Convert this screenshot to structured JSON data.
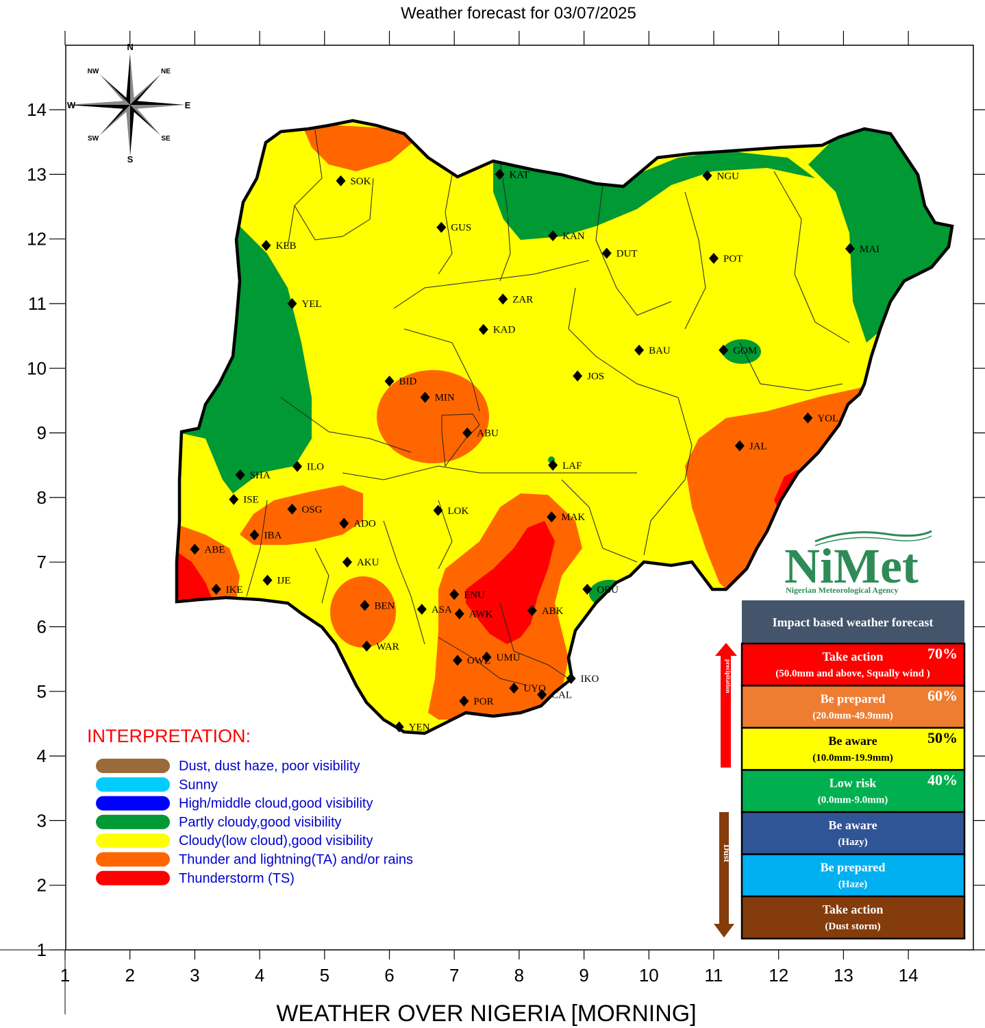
{
  "title": "Weather forecast for 03/07/2025",
  "bottom_caption": "WEATHER OVER NIGERIA [MORNING]",
  "axes": {
    "x_ticks": [
      "1",
      "2",
      "3",
      "4",
      "5",
      "6",
      "7",
      "8",
      "9",
      "10",
      "11",
      "12",
      "13",
      "14"
    ],
    "y_ticks": [
      "14",
      "13",
      "12",
      "11",
      "10",
      "9",
      "8",
      "7",
      "6",
      "5",
      "4",
      "3",
      "2",
      "1"
    ]
  },
  "compass": {
    "n": "N",
    "s": "S",
    "e": "E",
    "w": "W",
    "ne": "NE",
    "nw": "NW",
    "se": "SE",
    "sw": "SW"
  },
  "cities": [
    {
      "code": "SOK",
      "lon": 5.25,
      "lat": 12.9
    },
    {
      "code": "KAT",
      "lon": 7.7,
      "lat": 13.0
    },
    {
      "code": "NGU",
      "lon": 10.9,
      "lat": 12.98
    },
    {
      "code": "GUS",
      "lon": 6.8,
      "lat": 12.18
    },
    {
      "code": "KAN",
      "lon": 8.52,
      "lat": 12.05
    },
    {
      "code": "KEB",
      "lon": 4.1,
      "lat": 11.9
    },
    {
      "code": "DUT",
      "lon": 9.35,
      "lat": 11.78
    },
    {
      "code": "POT",
      "lon": 11.0,
      "lat": 11.7
    },
    {
      "code": "MAI",
      "lon": 13.1,
      "lat": 11.85
    },
    {
      "code": "YEL",
      "lon": 4.5,
      "lat": 11.0
    },
    {
      "code": "ZAR",
      "lon": 7.75,
      "lat": 11.07
    },
    {
      "code": "KAD",
      "lon": 7.45,
      "lat": 10.6
    },
    {
      "code": "BAU",
      "lon": 9.85,
      "lat": 10.28
    },
    {
      "code": "GOM",
      "lon": 11.15,
      "lat": 10.28
    },
    {
      "code": "JOS",
      "lon": 8.9,
      "lat": 9.88
    },
    {
      "code": "BID",
      "lon": 6.0,
      "lat": 9.8
    },
    {
      "code": "MIN",
      "lon": 6.55,
      "lat": 9.55
    },
    {
      "code": "ABU",
      "lon": 7.2,
      "lat": 9.0
    },
    {
      "code": "YOL",
      "lon": 12.45,
      "lat": 9.23
    },
    {
      "code": "JAL",
      "lon": 11.4,
      "lat": 8.8
    },
    {
      "code": "LAF",
      "lon": 8.52,
      "lat": 8.5
    },
    {
      "code": "SHA",
      "lon": 3.7,
      "lat": 8.35
    },
    {
      "code": "ILO",
      "lon": 4.58,
      "lat": 8.48
    },
    {
      "code": "ISE",
      "lon": 3.6,
      "lat": 7.97
    },
    {
      "code": "OSG",
      "lon": 4.5,
      "lat": 7.82
    },
    {
      "code": "LOK",
      "lon": 6.75,
      "lat": 7.8
    },
    {
      "code": "MAK",
      "lon": 8.5,
      "lat": 7.7
    },
    {
      "code": "IBA",
      "lon": 3.92,
      "lat": 7.42
    },
    {
      "code": "ADO",
      "lon": 5.3,
      "lat": 7.6
    },
    {
      "code": "ABE",
      "lon": 3.0,
      "lat": 7.2
    },
    {
      "code": "AKU",
      "lon": 5.35,
      "lat": 7.0
    },
    {
      "code": "IKE",
      "lon": 3.33,
      "lat": 6.58
    },
    {
      "code": "IJE",
      "lon": 4.12,
      "lat": 6.72
    },
    {
      "code": "OBU",
      "lon": 9.05,
      "lat": 6.58
    },
    {
      "code": "ENU",
      "lon": 7.0,
      "lat": 6.5
    },
    {
      "code": "BEN",
      "lon": 5.62,
      "lat": 6.33
    },
    {
      "code": "ASA",
      "lon": 6.5,
      "lat": 6.27
    },
    {
      "code": "AWK",
      "lon": 7.08,
      "lat": 6.2
    },
    {
      "code": "ABK",
      "lon": 8.2,
      "lat": 6.25
    },
    {
      "code": "WAR",
      "lon": 5.65,
      "lat": 5.7
    },
    {
      "code": "OWE",
      "lon": 7.05,
      "lat": 5.48
    },
    {
      "code": "UMU",
      "lon": 7.5,
      "lat": 5.53
    },
    {
      "code": "IKO",
      "lon": 8.8,
      "lat": 5.2
    },
    {
      "code": "UYO",
      "lon": 7.92,
      "lat": 5.05
    },
    {
      "code": "CAL",
      "lon": 8.35,
      "lat": 4.95
    },
    {
      "code": "POR",
      "lon": 7.15,
      "lat": 4.85
    },
    {
      "code": "YEN",
      "lon": 6.15,
      "lat": 4.45
    }
  ],
  "logo": {
    "brand": "NiMet",
    "agency": "Nigerian Meteorological Agency"
  },
  "impact_panel": {
    "header": "Impact based weather forecast",
    "precip_arrow_label": "precipitation",
    "dust_arrow_label": "Dust",
    "rows": [
      {
        "line1": "Take action",
        "line2": "(50.0mm and above, Squally wind )",
        "pct": "70%",
        "bg": "#ff0000",
        "fg": "#ffffff"
      },
      {
        "line1": "Be prepared",
        "line2": "(20.0mm-49.9mm)",
        "pct": "60%",
        "bg": "#ee7d31",
        "fg": "#ffffff"
      },
      {
        "line1": "Be aware",
        "line2": "(10.0mm-19.9mm)",
        "pct": "50%",
        "bg": "#ffff00",
        "fg": "#000000"
      },
      {
        "line1": "Low risk",
        "line2": "(0.0mm-9.0mm)",
        "pct": "40%",
        "bg": "#00b050",
        "fg": "#ffffff"
      },
      {
        "line1": "Be aware",
        "line2": "(Hazy)",
        "pct": "",
        "bg": "#2f5597",
        "fg": "#ffffff"
      },
      {
        "line1": "Be prepared",
        "line2": "(Haze)",
        "pct": "",
        "bg": "#00b0f0",
        "fg": "#ffffff"
      },
      {
        "line1": "Take action",
        "line2": "(Dust storm)",
        "pct": "",
        "bg": "#843c0c",
        "fg": "#ffffff"
      }
    ]
  },
  "interpretation": {
    "heading": "INTERPRETATION:",
    "items": [
      {
        "label": "Dust, dust haze, poor visibility",
        "color": "#9b6a3a"
      },
      {
        "label": "Sunny",
        "color": "#00ccff"
      },
      {
        "label": "High/middle cloud,good visibility",
        "color": "#0000ff"
      },
      {
        "label": "Partly cloudy,good visibility",
        "color": "#009933"
      },
      {
        "label": "Cloudy(low cloud),good visibility",
        "color": "#ffff00"
      },
      {
        "label": "Thunder and lightning(TA) and/or rains",
        "color": "#ff6600"
      },
      {
        "label": "Thunderstorm (TS)",
        "color": "#ff0000"
      }
    ]
  },
  "colors": {
    "cloudy_yellow": "#ffff00",
    "partly_cloudy_green": "#009933",
    "thunder_orange": "#ff6600",
    "thunderstorm_red": "#ff0000"
  }
}
